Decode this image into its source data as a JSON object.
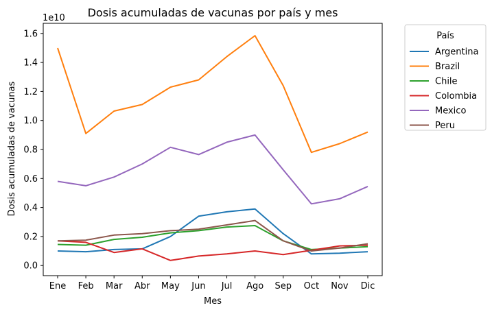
{
  "chart_data": {
    "type": "line",
    "title": "Dosis acumuladas de vacunas por país y mes",
    "xlabel": "Mes",
    "ylabel": "Dosis acumuladas de vacunas",
    "y_offset_label": "1e10",
    "categories": [
      "Ene",
      "Feb",
      "Mar",
      "Abr",
      "May",
      "Jun",
      "Jul",
      "Ago",
      "Sep",
      "Oct",
      "Nov",
      "Dic"
    ],
    "ylim": [
      -0.07,
      1.67
    ],
    "yticks": [
      0.0,
      0.2,
      0.4,
      0.6,
      0.8,
      1.0,
      1.2,
      1.4,
      1.6
    ],
    "ytick_labels": [
      "0.0",
      "0.2",
      "0.4",
      "0.6",
      "0.8",
      "1.0",
      "1.2",
      "1.4",
      "1.6"
    ],
    "grid": false,
    "legend": {
      "title": "País",
      "placement": "outside-right-top"
    },
    "series": [
      {
        "name": "Argentina",
        "color": "#1f77b4",
        "values": [
          0.1,
          0.095,
          0.11,
          0.115,
          0.2,
          0.34,
          0.37,
          0.39,
          0.22,
          0.08,
          0.085,
          0.095
        ]
      },
      {
        "name": "Brazil",
        "color": "#ff7f0e",
        "values": [
          1.5,
          0.91,
          1.065,
          1.11,
          1.23,
          1.28,
          1.44,
          1.585,
          1.24,
          0.78,
          0.84,
          0.92
        ]
      },
      {
        "name": "Chile",
        "color": "#2ca02c",
        "values": [
          0.145,
          0.14,
          0.18,
          0.195,
          0.225,
          0.24,
          0.265,
          0.275,
          0.17,
          0.11,
          0.12,
          0.13
        ]
      },
      {
        "name": "Colombia",
        "color": "#d62728",
        "values": [
          0.17,
          0.16,
          0.09,
          0.115,
          0.035,
          0.065,
          0.08,
          0.1,
          0.075,
          0.105,
          0.135,
          0.14
        ]
      },
      {
        "name": "Mexico",
        "color": "#9467bd",
        "values": [
          0.58,
          0.55,
          0.61,
          0.7,
          0.815,
          0.765,
          0.85,
          0.9,
          0.66,
          0.425,
          0.46,
          0.545
        ]
      },
      {
        "name": "Peru",
        "color": "#8c564b",
        "values": [
          0.17,
          0.175,
          0.21,
          0.22,
          0.24,
          0.25,
          0.28,
          0.31,
          0.17,
          0.1,
          0.12,
          0.15
        ]
      }
    ]
  }
}
